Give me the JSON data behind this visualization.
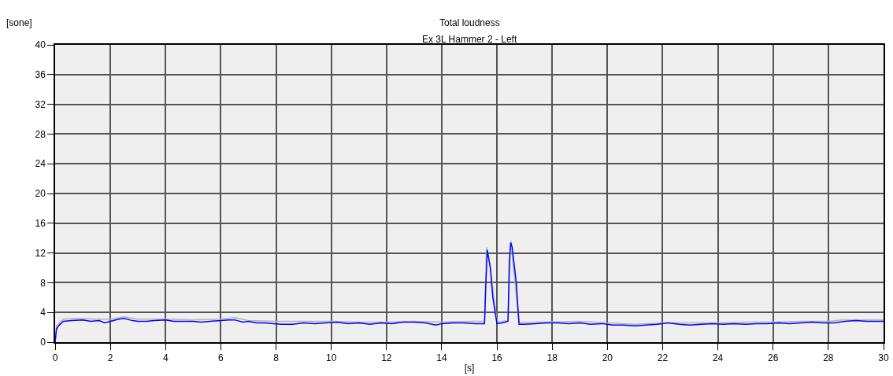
{
  "chart_data": {
    "type": "line",
    "title": "Total loudness",
    "subtitle": "Ex 3L Hammer 2 - Left",
    "xlabel": "[s]",
    "ylabel": "[sone]",
    "xlim": [
      0,
      30
    ],
    "xticks": [
      0,
      2,
      4,
      6,
      8,
      10,
      12,
      14,
      16,
      18,
      20,
      22,
      24,
      26,
      28,
      30
    ],
    "ylim": [
      0,
      40
    ],
    "yticks": [
      0,
      4,
      8,
      12,
      16,
      20,
      24,
      28,
      32,
      36,
      40
    ],
    "grid": true,
    "marker": "none",
    "line_style": "solid",
    "series": [
      {
        "color": "#b4b4b4",
        "x": [
          0,
          0.05,
          0.3,
          0.8,
          1.5,
          2.0,
          2.5,
          3.0,
          4.0,
          5.0,
          6.0,
          6.5,
          7.0,
          8.0,
          9.0,
          10.0,
          11.0,
          12.0,
          13.0,
          14.0,
          15.0,
          15.55,
          15.62,
          15.76,
          16.0,
          16.4,
          16.5,
          16.8,
          17.5,
          19.0,
          20.0,
          21.0,
          22.0,
          23.0,
          24.0,
          25.0,
          26.0,
          27.0,
          28.0,
          28.5,
          29.0,
          30.0
        ],
        "values": [
          0,
          2.2,
          3.1,
          3.2,
          3.1,
          3.1,
          3.4,
          3.1,
          3.1,
          3.0,
          3.1,
          3.3,
          2.9,
          2.8,
          2.8,
          2.8,
          2.7,
          2.7,
          2.8,
          2.7,
          2.8,
          2.8,
          12.8,
          10.2,
          2.7,
          2.9,
          13.6,
          2.6,
          2.7,
          2.8,
          2.6,
          2.4,
          2.6,
          2.6,
          2.6,
          2.7,
          2.7,
          2.8,
          2.8,
          3.0,
          3.0,
          3.0
        ]
      },
      {
        "color": "#0000ff",
        "x": [
          0,
          0.05,
          0.15,
          0.3,
          0.6,
          1.0,
          1.3,
          1.6,
          1.8,
          2.0,
          2.3,
          2.5,
          2.8,
          3.0,
          3.3,
          3.6,
          4.0,
          4.3,
          4.6,
          5.0,
          5.3,
          5.6,
          6.0,
          6.3,
          6.5,
          6.8,
          7.0,
          7.3,
          7.6,
          7.9,
          8.2,
          8.6,
          9.0,
          9.4,
          9.8,
          10.2,
          10.6,
          11.0,
          11.4,
          11.8,
          12.2,
          12.6,
          13.0,
          13.4,
          13.8,
          14.0,
          14.4,
          14.8,
          15.2,
          15.55,
          15.6,
          15.65,
          15.76,
          15.85,
          16.0,
          16.2,
          16.4,
          16.45,
          16.5,
          16.55,
          16.7,
          16.8,
          17.0,
          17.4,
          17.8,
          18.2,
          18.6,
          19.0,
          19.4,
          19.8,
          20.2,
          20.6,
          21.0,
          21.4,
          21.8,
          22.2,
          22.6,
          23.0,
          23.4,
          23.8,
          24.2,
          24.6,
          25.0,
          25.4,
          25.8,
          26.2,
          26.6,
          27.0,
          27.4,
          27.8,
          28.2,
          28.6,
          29.0,
          29.4,
          29.8,
          30.0
        ],
        "values": [
          0,
          1.8,
          2.3,
          2.8,
          2.9,
          3.0,
          2.8,
          2.9,
          2.6,
          2.8,
          3.1,
          3.2,
          2.9,
          2.8,
          2.8,
          2.9,
          3.0,
          2.8,
          2.8,
          2.8,
          2.7,
          2.8,
          2.9,
          3.0,
          3.0,
          2.7,
          2.8,
          2.6,
          2.6,
          2.5,
          2.4,
          2.4,
          2.6,
          2.5,
          2.6,
          2.7,
          2.5,
          2.6,
          2.4,
          2.6,
          2.5,
          2.7,
          2.7,
          2.6,
          2.3,
          2.5,
          2.6,
          2.6,
          2.5,
          2.5,
          8.0,
          12.4,
          10.0,
          6.0,
          2.5,
          2.6,
          2.8,
          11.0,
          13.4,
          12.8,
          8.0,
          2.4,
          2.4,
          2.5,
          2.6,
          2.6,
          2.5,
          2.6,
          2.4,
          2.5,
          2.3,
          2.3,
          2.2,
          2.3,
          2.4,
          2.6,
          2.4,
          2.3,
          2.4,
          2.5,
          2.4,
          2.5,
          2.4,
          2.5,
          2.5,
          2.6,
          2.5,
          2.6,
          2.7,
          2.6,
          2.6,
          2.8,
          2.9,
          2.8,
          2.8,
          2.8
        ]
      }
    ]
  }
}
